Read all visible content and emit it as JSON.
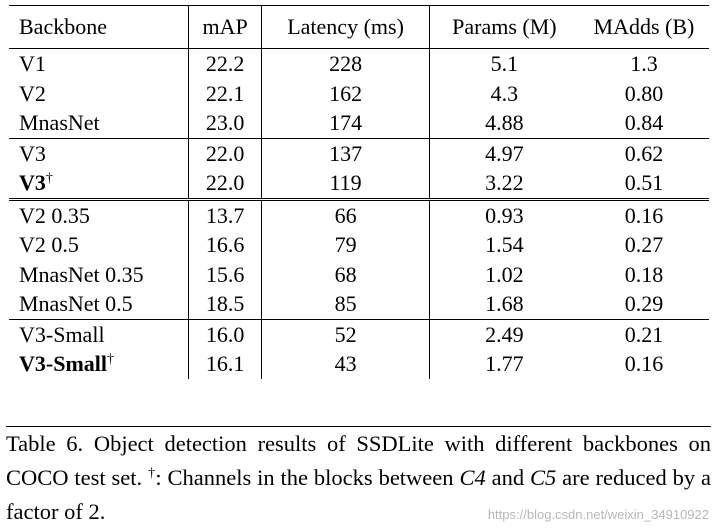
{
  "table": {
    "headers": [
      "Backbone",
      "mAP",
      "Latency (ms)",
      "Params (M)",
      "MAdds (B)"
    ],
    "groups": [
      {
        "rows": [
          {
            "backbone": "V1",
            "mAP": "22.2",
            "latency": "228",
            "params": "5.1",
            "madds": "1.3"
          },
          {
            "backbone": "V2",
            "mAP": "22.1",
            "latency": "162",
            "params": "4.3",
            "madds": "0.80"
          },
          {
            "backbone": "MnasNet",
            "mAP": "23.0",
            "latency": "174",
            "params": "4.88",
            "madds": "0.84"
          }
        ]
      },
      {
        "rows": [
          {
            "backbone": "V3",
            "mAP": "22.0",
            "latency": "137",
            "params": "4.97",
            "madds": "0.62"
          },
          {
            "backbone": "V3",
            "sup": "†",
            "bold": true,
            "mAP": "22.0",
            "latency": "119",
            "params": "3.22",
            "madds": "0.51"
          }
        ]
      },
      {
        "rows": [
          {
            "backbone": "V2 0.35",
            "mAP": "13.7",
            "latency": "66",
            "params": "0.93",
            "madds": "0.16"
          },
          {
            "backbone": "V2 0.5",
            "mAP": "16.6",
            "latency": "79",
            "params": "1.54",
            "madds": "0.27"
          },
          {
            "backbone": "MnasNet 0.35",
            "mAP": "15.6",
            "latency": "68",
            "params": "1.02",
            "madds": "0.18"
          },
          {
            "backbone": "MnasNet 0.5",
            "mAP": "18.5",
            "latency": "85",
            "params": "1.68",
            "madds": "0.29"
          }
        ]
      },
      {
        "rows": [
          {
            "backbone": "V3-Small",
            "mAP": "16.0",
            "latency": "52",
            "params": "2.49",
            "madds": "0.21"
          },
          {
            "backbone": "V3-Small",
            "sup": "†",
            "bold": true,
            "mAP": "16.1",
            "latency": "43",
            "params": "1.77",
            "madds": "0.16"
          }
        ]
      }
    ]
  },
  "caption": {
    "part1": "Table 6. Object detection results of SSDLite with different backbones on COCO test set. ",
    "dagger": "†",
    "part2": ": Channels in the blocks between ",
    "c4": "C4",
    "part3": " and ",
    "c5": "C5",
    "part4": " are reduced by a factor of 2."
  },
  "watermark": "https://blog.csdn.net/weixin_34910922"
}
